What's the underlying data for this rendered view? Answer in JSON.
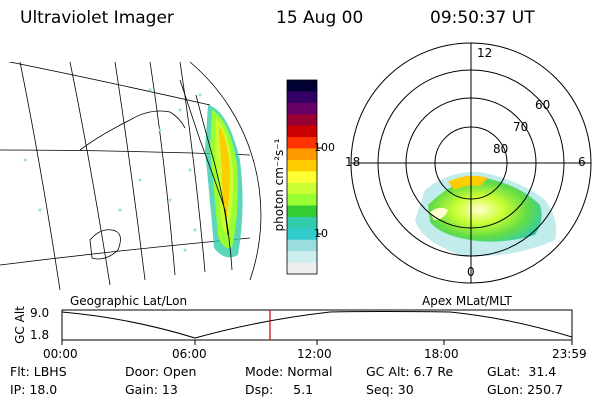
{
  "header": {
    "instrument": "Ultraviolet Imager",
    "date": "15 Aug 00",
    "time": "09:50:37 UT"
  },
  "colorbar": {
    "unit_label": "photon cm⁻²s⁻¹",
    "ticks": [
      "100",
      "10"
    ],
    "colors": [
      "#000033",
      "#330066",
      "#660066",
      "#990033",
      "#cc0000",
      "#ff3300",
      "#ff9900",
      "#ffcc00",
      "#ffff33",
      "#ccff33",
      "#99ff33",
      "#33cc33",
      "#33ccaa",
      "#33cccc",
      "#99dddd",
      "#cceeee",
      "#eeeeee"
    ]
  },
  "polar_plot": {
    "mlt_labels": {
      "top": "12",
      "left": "18",
      "right": "6",
      "bottom": "0"
    },
    "lat_labels": [
      "60",
      "70",
      "80"
    ]
  },
  "panels": {
    "left_label": "Geographic Lat/Lon",
    "right_label": "Apex MLat/MLT"
  },
  "altitude_plot": {
    "axis_label": "GC Alt",
    "y_max": "9.0",
    "y_min": "1.8",
    "x_ticks": [
      "00:00",
      "06:00",
      "12:00",
      "18:00",
      "23:59"
    ],
    "marker_color": "#cc0000"
  },
  "status": {
    "flt": "Flt: LBHS",
    "ip": "IP: 18.0",
    "door": "Door: Open",
    "gain": "Gain: 13",
    "mode": "Mode: Normal",
    "dsp": "Dsp:     5.1",
    "gcalt": "GC Alt: 6.7 Re",
    "seq": "Seq: 30",
    "glat": "GLat:  31.4",
    "glon": "GLon: 250.7"
  }
}
